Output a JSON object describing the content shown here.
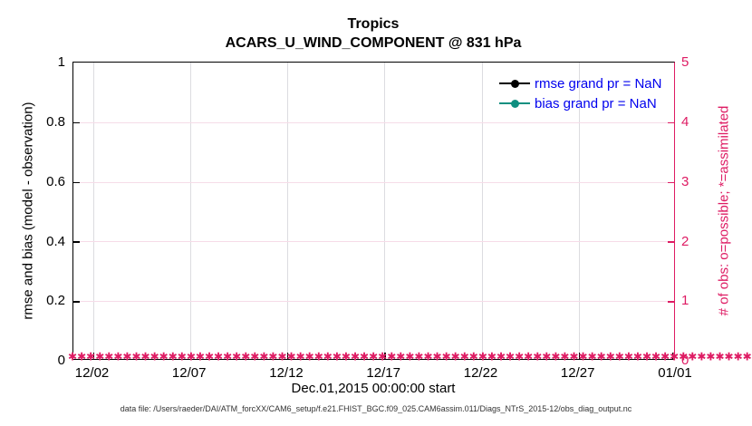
{
  "figure": {
    "title_line1": "Tropics",
    "title_line2": "ACARS_U_WIND_COMPONENT @ 831 hPa",
    "xlabel": "Dec.01,2015 00:00:00 start",
    "footer": "data file: /Users/raeder/DAI/ATM_forcXX/CAM6_setup/f.e21.FHIST_BGC.f09_025.CAM6assim.011/Diags_NTrS_2015-12/obs_diag_output.nc"
  },
  "left_axis": {
    "label": "rmse and bias (model - observation)",
    "ticks": [
      "0",
      "0.2",
      "0.4",
      "0.6",
      "0.8",
      "1"
    ]
  },
  "right_axis": {
    "label": "# of obs: o=possible; *=assimilated",
    "ticks": [
      "0",
      "1",
      "2",
      "3",
      "4",
      "5"
    ]
  },
  "x_axis": {
    "ticks": [
      "12/02",
      "12/07",
      "12/12",
      "12/17",
      "12/22",
      "12/27",
      "01/01"
    ]
  },
  "legend": {
    "items": [
      {
        "label": "rmse grand pr = NaN",
        "color": "#000000"
      },
      {
        "label": "bias grand pr = NaN",
        "color": "#0f8f80"
      }
    ]
  },
  "colors": {
    "pink": "#de1b63",
    "teal": "#0f8f80",
    "legend_blue": "#0000ee",
    "grid_vertical": "#dcdce0",
    "grid_horizontal": "#f6dce8"
  },
  "chart_data": {
    "type": "line",
    "title": "Tropics",
    "subtitle": "ACARS_U_WIND_COMPONENT @ 831 hPa",
    "xlabel": "Dec.01,2015 00:00:00 start",
    "x_ticks": [
      "12/02",
      "12/07",
      "12/12",
      "12/17",
      "12/22",
      "12/27",
      "01/01"
    ],
    "x_range": [
      "2015-12-01 00:00",
      "2016-01-01 00:00"
    ],
    "left_y": {
      "label": "rmse and bias (model - observation)",
      "lim": [
        0,
        1
      ],
      "ticks": [
        0,
        0.2,
        0.4,
        0.6,
        0.8,
        1
      ]
    },
    "right_y": {
      "label": "# of obs: o=possible; *=assimilated",
      "lim": [
        0,
        5
      ],
      "ticks": [
        0,
        1,
        2,
        3,
        4,
        5
      ]
    },
    "grid": true,
    "legend_position": "northeast",
    "series": [
      {
        "name": "rmse grand pr = NaN",
        "axis": "left",
        "values": "NaN",
        "note": "no visible curve; grand prior rmse is NaN"
      },
      {
        "name": "bias grand pr = NaN",
        "axis": "left",
        "values": "NaN",
        "note": "no visible curve; grand prior bias is NaN"
      },
      {
        "name": "# of obs assimilated",
        "axis": "right",
        "marker": "*",
        "constant_value": 0,
        "points": 125,
        "note": "pink * markers at y=0 every 6 hours spanning the full x range"
      }
    ]
  }
}
